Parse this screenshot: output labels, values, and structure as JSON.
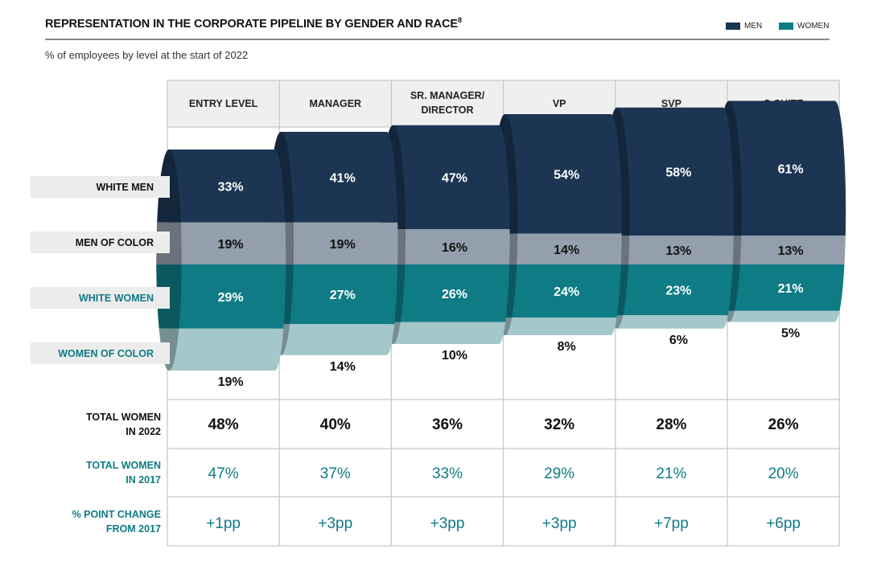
{
  "title": "REPRESENTATION IN THE CORPORATE PIPELINE BY GENDER AND RACE",
  "title_footnote": "8",
  "subtitle": "% of employees by level at the start of 2022",
  "legend": {
    "men": "MEN",
    "women": "WOMEN"
  },
  "colors": {
    "men": "#1c3553",
    "men_light": "#939fac",
    "women": "#0f7b85",
    "women_light": "#a3c7ca"
  },
  "segment_labels": {
    "white_men": "WHITE MEN",
    "men_of_color": "MEN OF COLOR",
    "white_women": "WHITE WOMEN",
    "women_of_color": "WOMEN OF COLOR"
  },
  "row_labels": {
    "total_2022": [
      "TOTAL WOMEN",
      "IN 2022"
    ],
    "total_2017": [
      "TOTAL WOMEN",
      "IN 2017"
    ],
    "change": [
      "% POINT CHANGE",
      "FROM 2017"
    ]
  },
  "chart_data": {
    "type": "bar",
    "categories": [
      "ENTRY LEVEL",
      "MANAGER",
      "SR. MANAGER/ DIRECTOR",
      "VP",
      "SVP",
      "C-SUITE"
    ],
    "series": [
      {
        "name": "WHITE MEN",
        "values": [
          33,
          41,
          47,
          54,
          58,
          61
        ]
      },
      {
        "name": "MEN OF COLOR",
        "values": [
          19,
          19,
          16,
          14,
          13,
          13
        ]
      },
      {
        "name": "WHITE WOMEN",
        "values": [
          29,
          27,
          26,
          24,
          23,
          21
        ]
      },
      {
        "name": "WOMEN OF COLOR",
        "values": [
          19,
          14,
          10,
          8,
          6,
          5
        ]
      }
    ],
    "value_labels": [
      [
        "33%",
        "41%",
        "47%",
        "54%",
        "58%",
        "61%"
      ],
      [
        "19%",
        "19%",
        "16%",
        "14%",
        "13%",
        "13%"
      ],
      [
        "29%",
        "27%",
        "26%",
        "24%",
        "23%",
        "21%"
      ],
      [
        "19%",
        "14%",
        "10%",
        "8%",
        "6%",
        "5%"
      ]
    ],
    "total_women_2022": [
      "48%",
      "40%",
      "36%",
      "32%",
      "28%",
      "26%"
    ],
    "total_women_2017": [
      "47%",
      "37%",
      "33%",
      "29%",
      "21%",
      "20%"
    ],
    "point_change": [
      "+1pp",
      "+3pp",
      "+3pp",
      "+3pp",
      "+7pp",
      "+6pp"
    ]
  }
}
